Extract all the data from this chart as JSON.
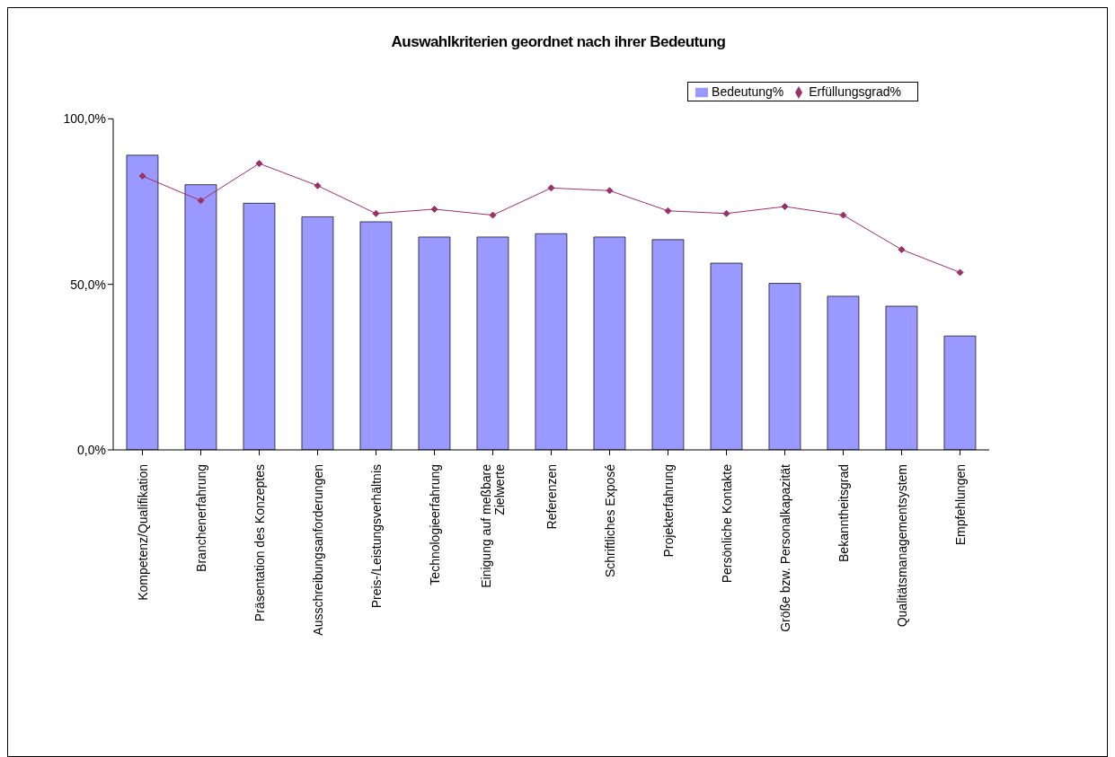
{
  "chart_data": {
    "type": "bar",
    "title": "Auswahlkriterien geordnet nach ihrer Bedeutung",
    "categories": [
      "Kompetenz/Qualifikation",
      "Branchenerfahrung",
      "Präsentation des Konzeptes",
      "Ausschreibungsanforderungen",
      "Preis-/Leistungsverhältnis",
      "Technologieerfahrung",
      "Einigung auf meßbare Zielwerte",
      "Referenzen",
      "Schriftliches Exposé",
      "Projekterfahrung",
      "Persönliche Kontakte",
      "Größe bzw. Personalkapazität",
      "Bekanntheitsgrad",
      "Qualitätsmanagementsystem",
      "Empfehlungen"
    ],
    "series": [
      {
        "name": "Bedeutung%",
        "color": "#9999ff",
        "values": [
          89.0,
          80.1,
          74.5,
          70.4,
          68.9,
          64.3,
          64.3,
          65.3,
          64.3,
          63.5,
          56.4,
          50.3,
          46.4,
          43.4,
          34.4
        ]
      },
      {
        "name": "Erfüllungsgrad%",
        "type": "line",
        "color": "#993366",
        "marker": "diamond",
        "values": [
          82.7,
          75.3,
          86.5,
          79.8,
          71.4,
          72.7,
          70.9,
          79.1,
          78.3,
          72.2,
          71.4,
          73.5,
          70.9,
          60.5,
          53.6
        ]
      }
    ],
    "ylim": [
      0,
      100
    ],
    "yticks": [
      {
        "value": 0,
        "label": "0,0%"
      },
      {
        "value": 50,
        "label": "50,0%"
      },
      {
        "value": 100,
        "label": "100,0%"
      }
    ],
    "grid": false,
    "legend": "top right"
  }
}
